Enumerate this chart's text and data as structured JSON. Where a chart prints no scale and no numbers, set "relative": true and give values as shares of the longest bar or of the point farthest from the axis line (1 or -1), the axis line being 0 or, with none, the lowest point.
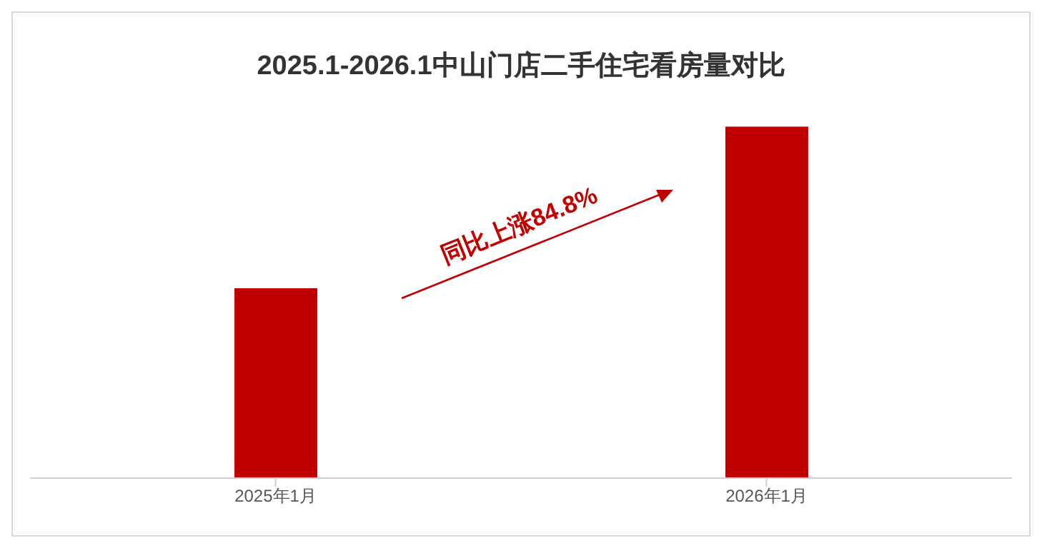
{
  "chart_data": {
    "type": "bar",
    "title": "2025.1-2026.1中山门店二手住宅看房量对比",
    "categories": [
      "2025年1月",
      "2026年1月"
    ],
    "values": [
      0.54,
      1
    ],
    "color": "#c00000",
    "relative": true,
    "grid": false,
    "annotations": [
      "同比上涨84.8%"
    ]
  }
}
